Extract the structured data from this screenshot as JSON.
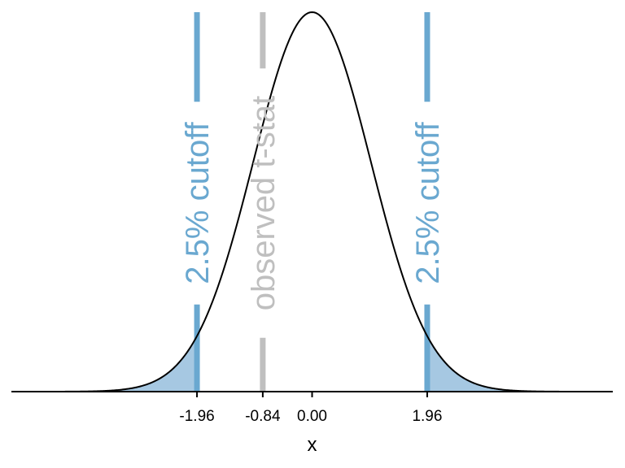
{
  "chart_data": {
    "type": "line",
    "title": "",
    "xlabel": "x",
    "ylabel": "",
    "xlim": [
      -5.12,
      5.12
    ],
    "distribution": "standard normal density",
    "curve_color": "#000000",
    "shade_color": "#a6c8e2",
    "x_ticks": [
      {
        "value": -1.96,
        "label": "-1.96"
      },
      {
        "value": -0.84,
        "label": "-0.84"
      },
      {
        "value": 0.0,
        "label": "0.00"
      },
      {
        "value": 1.96,
        "label": "1.96"
      }
    ],
    "shaded_tails": [
      {
        "from": -5.12,
        "to": -1.96
      },
      {
        "from": 1.96,
        "to": 5.12
      }
    ],
    "vertical_lines": [
      {
        "x": -1.96,
        "label": "2.5% cutoff",
        "color": "#6aa8d0"
      },
      {
        "x": -0.84,
        "label": "observed t-stat",
        "color": "#bfbfbf"
      },
      {
        "x": 1.96,
        "label": "2.5% cutoff",
        "color": "#6aa8d0"
      }
    ],
    "grid": false,
    "legend": "none"
  }
}
